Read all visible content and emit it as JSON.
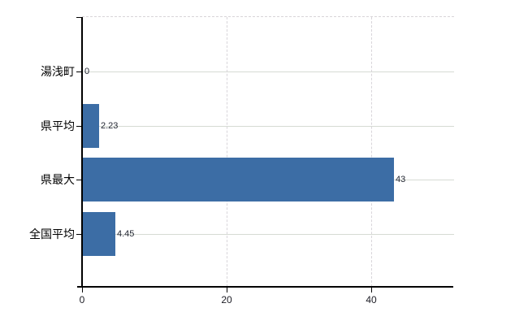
{
  "chart_data": {
    "type": "bar",
    "orientation": "horizontal",
    "title": "",
    "categories": [
      "湯浅町",
      "県平均",
      "県最大",
      "全国平均"
    ],
    "values": [
      0,
      2.23,
      43,
      4.45
    ],
    "value_labels": [
      "0",
      "2.23",
      "43",
      "4.45"
    ],
    "x_tick_values": [
      0,
      20,
      40
    ],
    "x_tick_labels": [
      "0",
      "20",
      "40"
    ],
    "xlim": [
      0,
      51.6
    ],
    "grid": true,
    "legend_visible": false,
    "colors": {
      "bar": "#3c6da5",
      "axis": "#000000",
      "h_gridline": "#d6dbd3",
      "v_gridline": "#d8d5da",
      "plot_top_border": "#d8d4d8",
      "category_label": "#000000",
      "value_label": "#232733"
    }
  }
}
